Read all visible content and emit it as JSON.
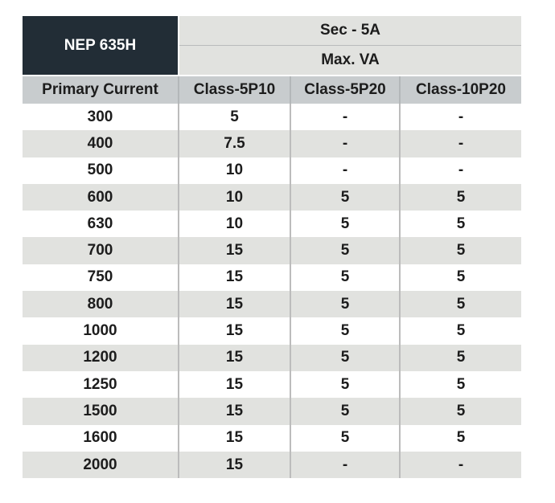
{
  "table": {
    "model": "NEP 635H",
    "secondary": "Sec - 5A",
    "unit": "Max. VA",
    "columns": [
      "Primary Current",
      "Class-5P10",
      "Class-5P20",
      "Class-10P20"
    ],
    "rows": [
      [
        "300",
        "5",
        "-",
        "-"
      ],
      [
        "400",
        "7.5",
        "-",
        "-"
      ],
      [
        "500",
        "10",
        "-",
        "-"
      ],
      [
        "600",
        "10",
        "5",
        "5"
      ],
      [
        "630",
        "10",
        "5",
        "5"
      ],
      [
        "700",
        "15",
        "5",
        "5"
      ],
      [
        "750",
        "15",
        "5",
        "5"
      ],
      [
        "800",
        "15",
        "5",
        "5"
      ],
      [
        "1000",
        "15",
        "5",
        "5"
      ],
      [
        "1200",
        "15",
        "5",
        "5"
      ],
      [
        "1250",
        "15",
        "5",
        "5"
      ],
      [
        "1500",
        "15",
        "5",
        "5"
      ],
      [
        "1600",
        "15",
        "5",
        "5"
      ],
      [
        "2000",
        "15",
        "-",
        "-"
      ]
    ],
    "colors": {
      "header_dark": "#222d36",
      "header_gray": "#c8ccce",
      "stripe": "#e1e2df"
    }
  }
}
